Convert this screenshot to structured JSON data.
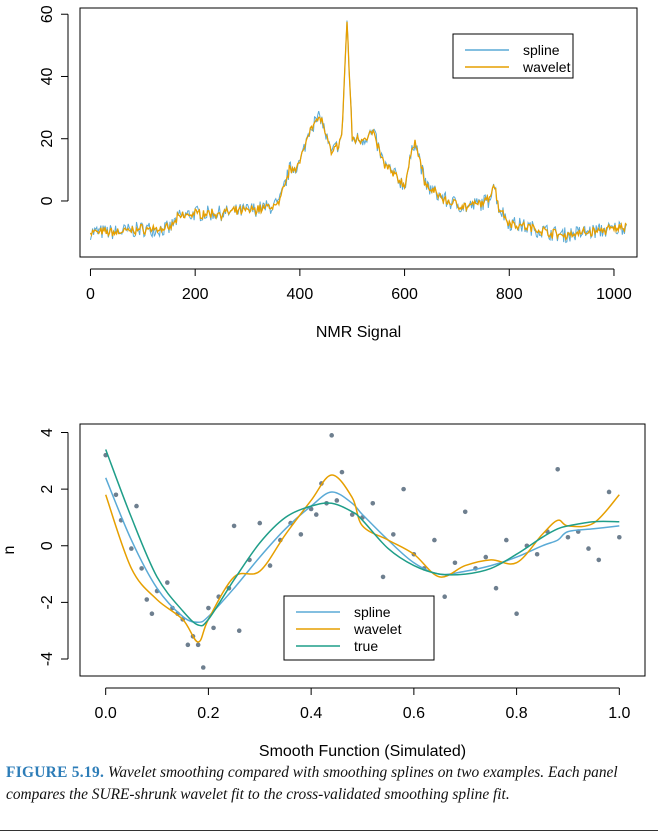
{
  "chart_data": [
    {
      "type": "line",
      "xlabel": "NMR Signal",
      "ylabel": "",
      "xlim": [
        -20,
        1044
      ],
      "ylim": [
        -18,
        62
      ],
      "xticks": [
        0,
        200,
        400,
        600,
        800,
        1000
      ],
      "yticks": [
        0,
        20,
        40,
        60
      ],
      "legend_position": "top-right",
      "series": [
        {
          "name": "spline",
          "color": "#5aaad6"
        },
        {
          "name": "wavelet",
          "color": "#e69f00"
        }
      ],
      "x": [
        0,
        50,
        100,
        150,
        170,
        200,
        250,
        300,
        340,
        360,
        380,
        400,
        420,
        440,
        460,
        480,
        490,
        500,
        520,
        540,
        560,
        600,
        620,
        640,
        680,
        720,
        760,
        770,
        780,
        800,
        850,
        900,
        950,
        1000,
        1024
      ],
      "y": [
        -10,
        -10,
        -9,
        -9,
        -5,
        -4,
        -4,
        -3,
        -2,
        -1,
        10,
        12,
        24,
        27,
        15,
        20,
        58,
        20,
        20,
        22,
        12,
        5,
        20,
        5,
        0,
        -2,
        0,
        6,
        -2,
        -7,
        -9,
        -11,
        -10,
        -9,
        -8
      ]
    },
    {
      "type": "scatter",
      "xlabel": "Smooth Function (Simulated)",
      "ylabel": "n",
      "xlim": [
        -0.05,
        1.05
      ],
      "ylim": [
        -4.6,
        4.3
      ],
      "xticks": [
        0.0,
        0.2,
        0.4,
        0.6,
        0.8,
        1.0
      ],
      "yticks": [
        -4,
        -2,
        0,
        2,
        4
      ],
      "legend_position": "bottom-center",
      "points_color": "#6e7f8f",
      "points": {
        "x": [
          0.0,
          0.02,
          0.03,
          0.05,
          0.06,
          0.07,
          0.08,
          0.09,
          0.1,
          0.12,
          0.13,
          0.14,
          0.15,
          0.16,
          0.17,
          0.18,
          0.19,
          0.2,
          0.21,
          0.22,
          0.24,
          0.25,
          0.26,
          0.28,
          0.3,
          0.32,
          0.34,
          0.36,
          0.38,
          0.4,
          0.41,
          0.42,
          0.43,
          0.44,
          0.45,
          0.46,
          0.48,
          0.5,
          0.52,
          0.54,
          0.56,
          0.58,
          0.6,
          0.62,
          0.64,
          0.66,
          0.68,
          0.7,
          0.72,
          0.74,
          0.76,
          0.78,
          0.8,
          0.82,
          0.84,
          0.86,
          0.88,
          0.9,
          0.92,
          0.94,
          0.96,
          0.98,
          1.0
        ],
        "y": [
          3.2,
          1.8,
          0.9,
          -0.1,
          1.4,
          -0.8,
          -1.9,
          -2.4,
          -1.6,
          -1.3,
          -2.2,
          -2.4,
          -2.6,
          -3.5,
          -3.2,
          -3.5,
          -4.3,
          -2.2,
          -2.9,
          -1.8,
          -1.5,
          0.7,
          -3.0,
          -0.5,
          0.8,
          -0.7,
          0.2,
          0.8,
          0.4,
          1.3,
          1.1,
          2.2,
          1.5,
          3.9,
          1.6,
          2.6,
          1.1,
          1.0,
          1.5,
          -1.1,
          0.4,
          2.0,
          -0.3,
          -0.8,
          0.2,
          -1.8,
          -0.6,
          1.2,
          -0.8,
          -0.4,
          -1.5,
          0.2,
          -2.4,
          0.0,
          -0.3,
          0.5,
          2.7,
          0.3,
          0.5,
          -0.1,
          -0.5,
          1.9,
          0.3
        ]
      },
      "curves_x": [
        0.0,
        0.05,
        0.1,
        0.15,
        0.18,
        0.2,
        0.25,
        0.3,
        0.35,
        0.4,
        0.44,
        0.48,
        0.5,
        0.55,
        0.6,
        0.65,
        0.7,
        0.75,
        0.8,
        0.85,
        0.88,
        0.9,
        0.95,
        1.0
      ],
      "series": [
        {
          "name": "spline",
          "color": "#5aaad6",
          "values": [
            2.4,
            0.2,
            -1.5,
            -2.5,
            -2.7,
            -2.5,
            -1.5,
            -0.4,
            0.6,
            1.4,
            1.9,
            1.5,
            1.1,
            0.2,
            -0.6,
            -1.0,
            -0.9,
            -0.7,
            -0.4,
            0.0,
            0.2,
            0.5,
            0.6,
            0.7
          ]
        },
        {
          "name": "wavelet",
          "color": "#e69f00",
          "values": [
            1.8,
            -0.8,
            -1.9,
            -2.6,
            -3.4,
            -2.6,
            -1.1,
            -0.9,
            0.4,
            1.6,
            2.5,
            1.7,
            0.7,
            0.2,
            -0.3,
            -1.1,
            -0.7,
            -0.5,
            -0.6,
            0.4,
            0.9,
            0.7,
            0.8,
            1.8
          ]
        },
        {
          "name": "true",
          "color": "#1f9e89",
          "values": [
            3.4,
            1.0,
            -1.1,
            -2.3,
            -2.8,
            -2.6,
            -1.2,
            0.1,
            1.0,
            1.4,
            1.5,
            1.2,
            0.9,
            -0.1,
            -0.7,
            -1.0,
            -1.0,
            -0.8,
            -0.3,
            0.3,
            0.6,
            0.7,
            0.85,
            0.85
          ]
        }
      ]
    }
  ],
  "caption": {
    "label": "FIGURE 5.19.",
    "text": "Wavelet smoothing compared with smoothing splines on two examples. Each panel compares the SURE-shrunk wavelet fit to the cross-validated smoothing spline fit."
  }
}
